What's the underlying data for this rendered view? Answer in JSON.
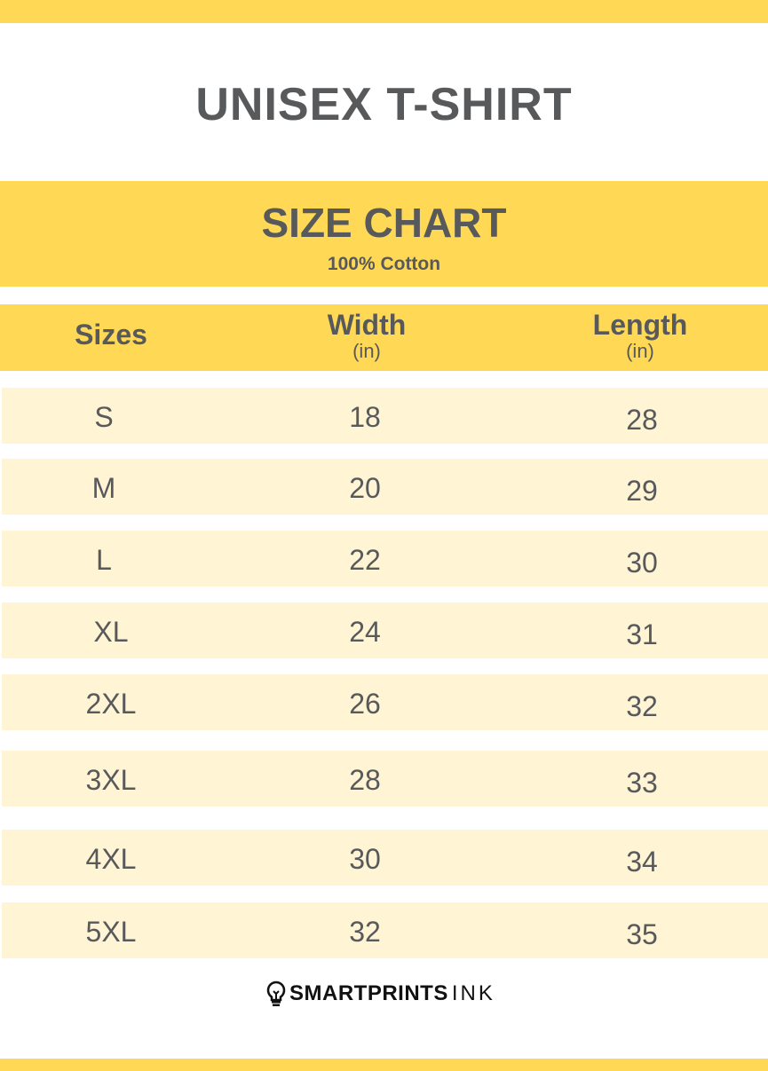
{
  "title": "UNISEX T-SHIRT",
  "chart_title": "SIZE CHART",
  "material": "100% Cotton",
  "headers": {
    "sizes": "Sizes",
    "width": "Width",
    "width_unit": "(in)",
    "length": "Length",
    "length_unit": "(in)"
  },
  "rows": [
    {
      "size": "S",
      "width": "18",
      "length": "28"
    },
    {
      "size": "M",
      "width": "20",
      "length": "29"
    },
    {
      "size": "L",
      "width": "22",
      "length": "30"
    },
    {
      "size": "XL",
      "width": "24",
      "length": "31"
    },
    {
      "size": "2XL",
      "width": "26",
      "length": "32"
    },
    {
      "size": "3XL",
      "width": "28",
      "length": "33"
    },
    {
      "size": "4XL",
      "width": "30",
      "length": "34"
    },
    {
      "size": "5XL",
      "width": "32",
      "length": "35"
    }
  ],
  "brand": {
    "bold": "SMARTPRINTS",
    "light": "INK",
    "icon": "lightbulb-icon"
  },
  "colors": {
    "accent": "#ffd955",
    "row": "#fff4d4",
    "text": "#58595b"
  }
}
